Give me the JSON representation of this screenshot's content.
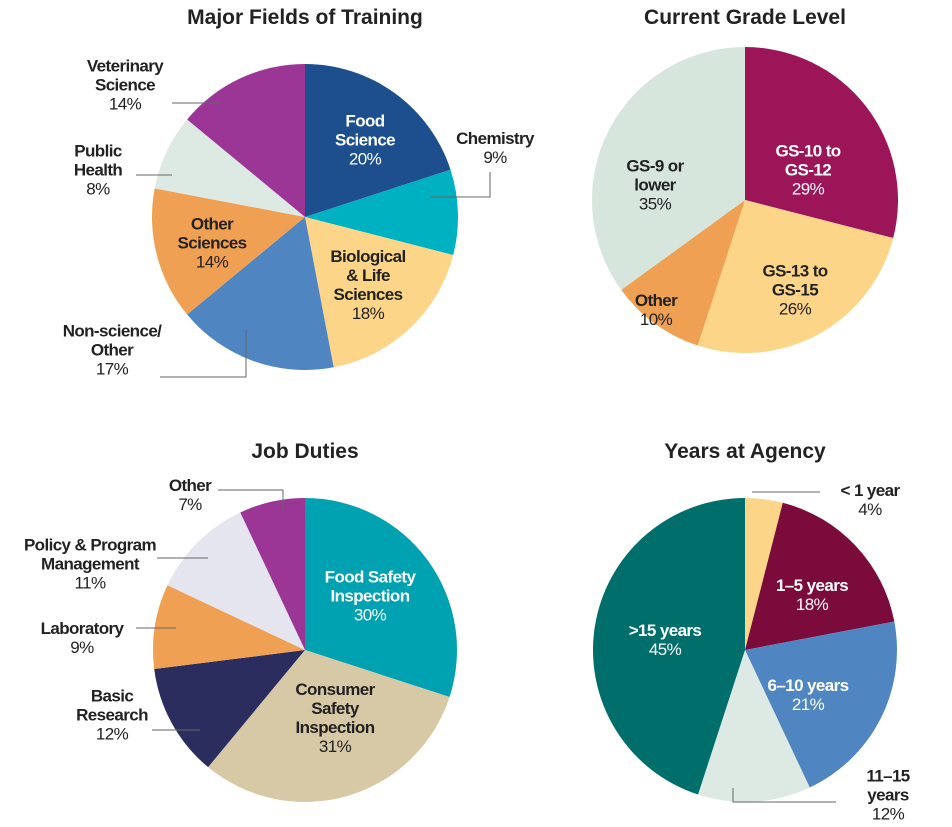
{
  "chart_data": [
    {
      "type": "pie",
      "title": "Major Fields of Training",
      "categories": [
        "Food\nScience",
        "Chemistry",
        "Biological\n& Life\nSciences",
        "Non-science/\nOther",
        "Other\nSciences",
        "Public\nHealth",
        "Veterinary\nScience"
      ],
      "values": [
        20,
        9,
        18,
        17,
        14,
        8,
        14
      ],
      "value_labels": [
        "20%",
        "9%",
        "18%",
        "17%",
        "14%",
        "8%",
        "14%"
      ],
      "colors": [
        "#1d4f8e",
        "#00b1c1",
        "#fdd589",
        "#4f86c1",
        "#f0a052",
        "#dde9e3",
        "#9b3696"
      ]
    },
    {
      "type": "pie",
      "title": "Current Grade Level",
      "categories": [
        "GS-10 to\nGS-12",
        "GS-13 to\nGS-15",
        "Other",
        "GS-9 or\nlower"
      ],
      "values": [
        29,
        26,
        10,
        35
      ],
      "value_labels": [
        "29%",
        "26%",
        "10%",
        "35%"
      ],
      "colors": [
        "#9c1559",
        "#fdd589",
        "#f0a052",
        "#d6e6dd"
      ]
    },
    {
      "type": "pie",
      "title": "Job Duties",
      "categories": [
        "Food Safety\nInspection",
        "Consumer\nSafety\nInspection",
        "Basic\nResearch",
        "Laboratory",
        "Policy & Program\nManagement",
        "Other"
      ],
      "values": [
        30,
        31,
        12,
        9,
        11,
        7
      ],
      "value_labels": [
        "30%",
        "31%",
        "12%",
        "9%",
        "11%",
        "7%"
      ],
      "colors": [
        "#00a2b1",
        "#d7c9a5",
        "#2b2d5f",
        "#f0a052",
        "#e5e5ef",
        "#9b3696"
      ]
    },
    {
      "type": "pie",
      "title": "Years at Agency",
      "categories": [
        "< 1 year",
        "1–5 years",
        "6–10 years",
        "11–15 years",
        ">15 years"
      ],
      "values": [
        4,
        18,
        21,
        12,
        45
      ],
      "value_labels": [
        "4%",
        "18%",
        "21%",
        "12%",
        "45%"
      ],
      "colors": [
        "#fdd589",
        "#7b0b3b",
        "#4f86c1",
        "#dde9e3",
        "#006f6b"
      ]
    }
  ]
}
